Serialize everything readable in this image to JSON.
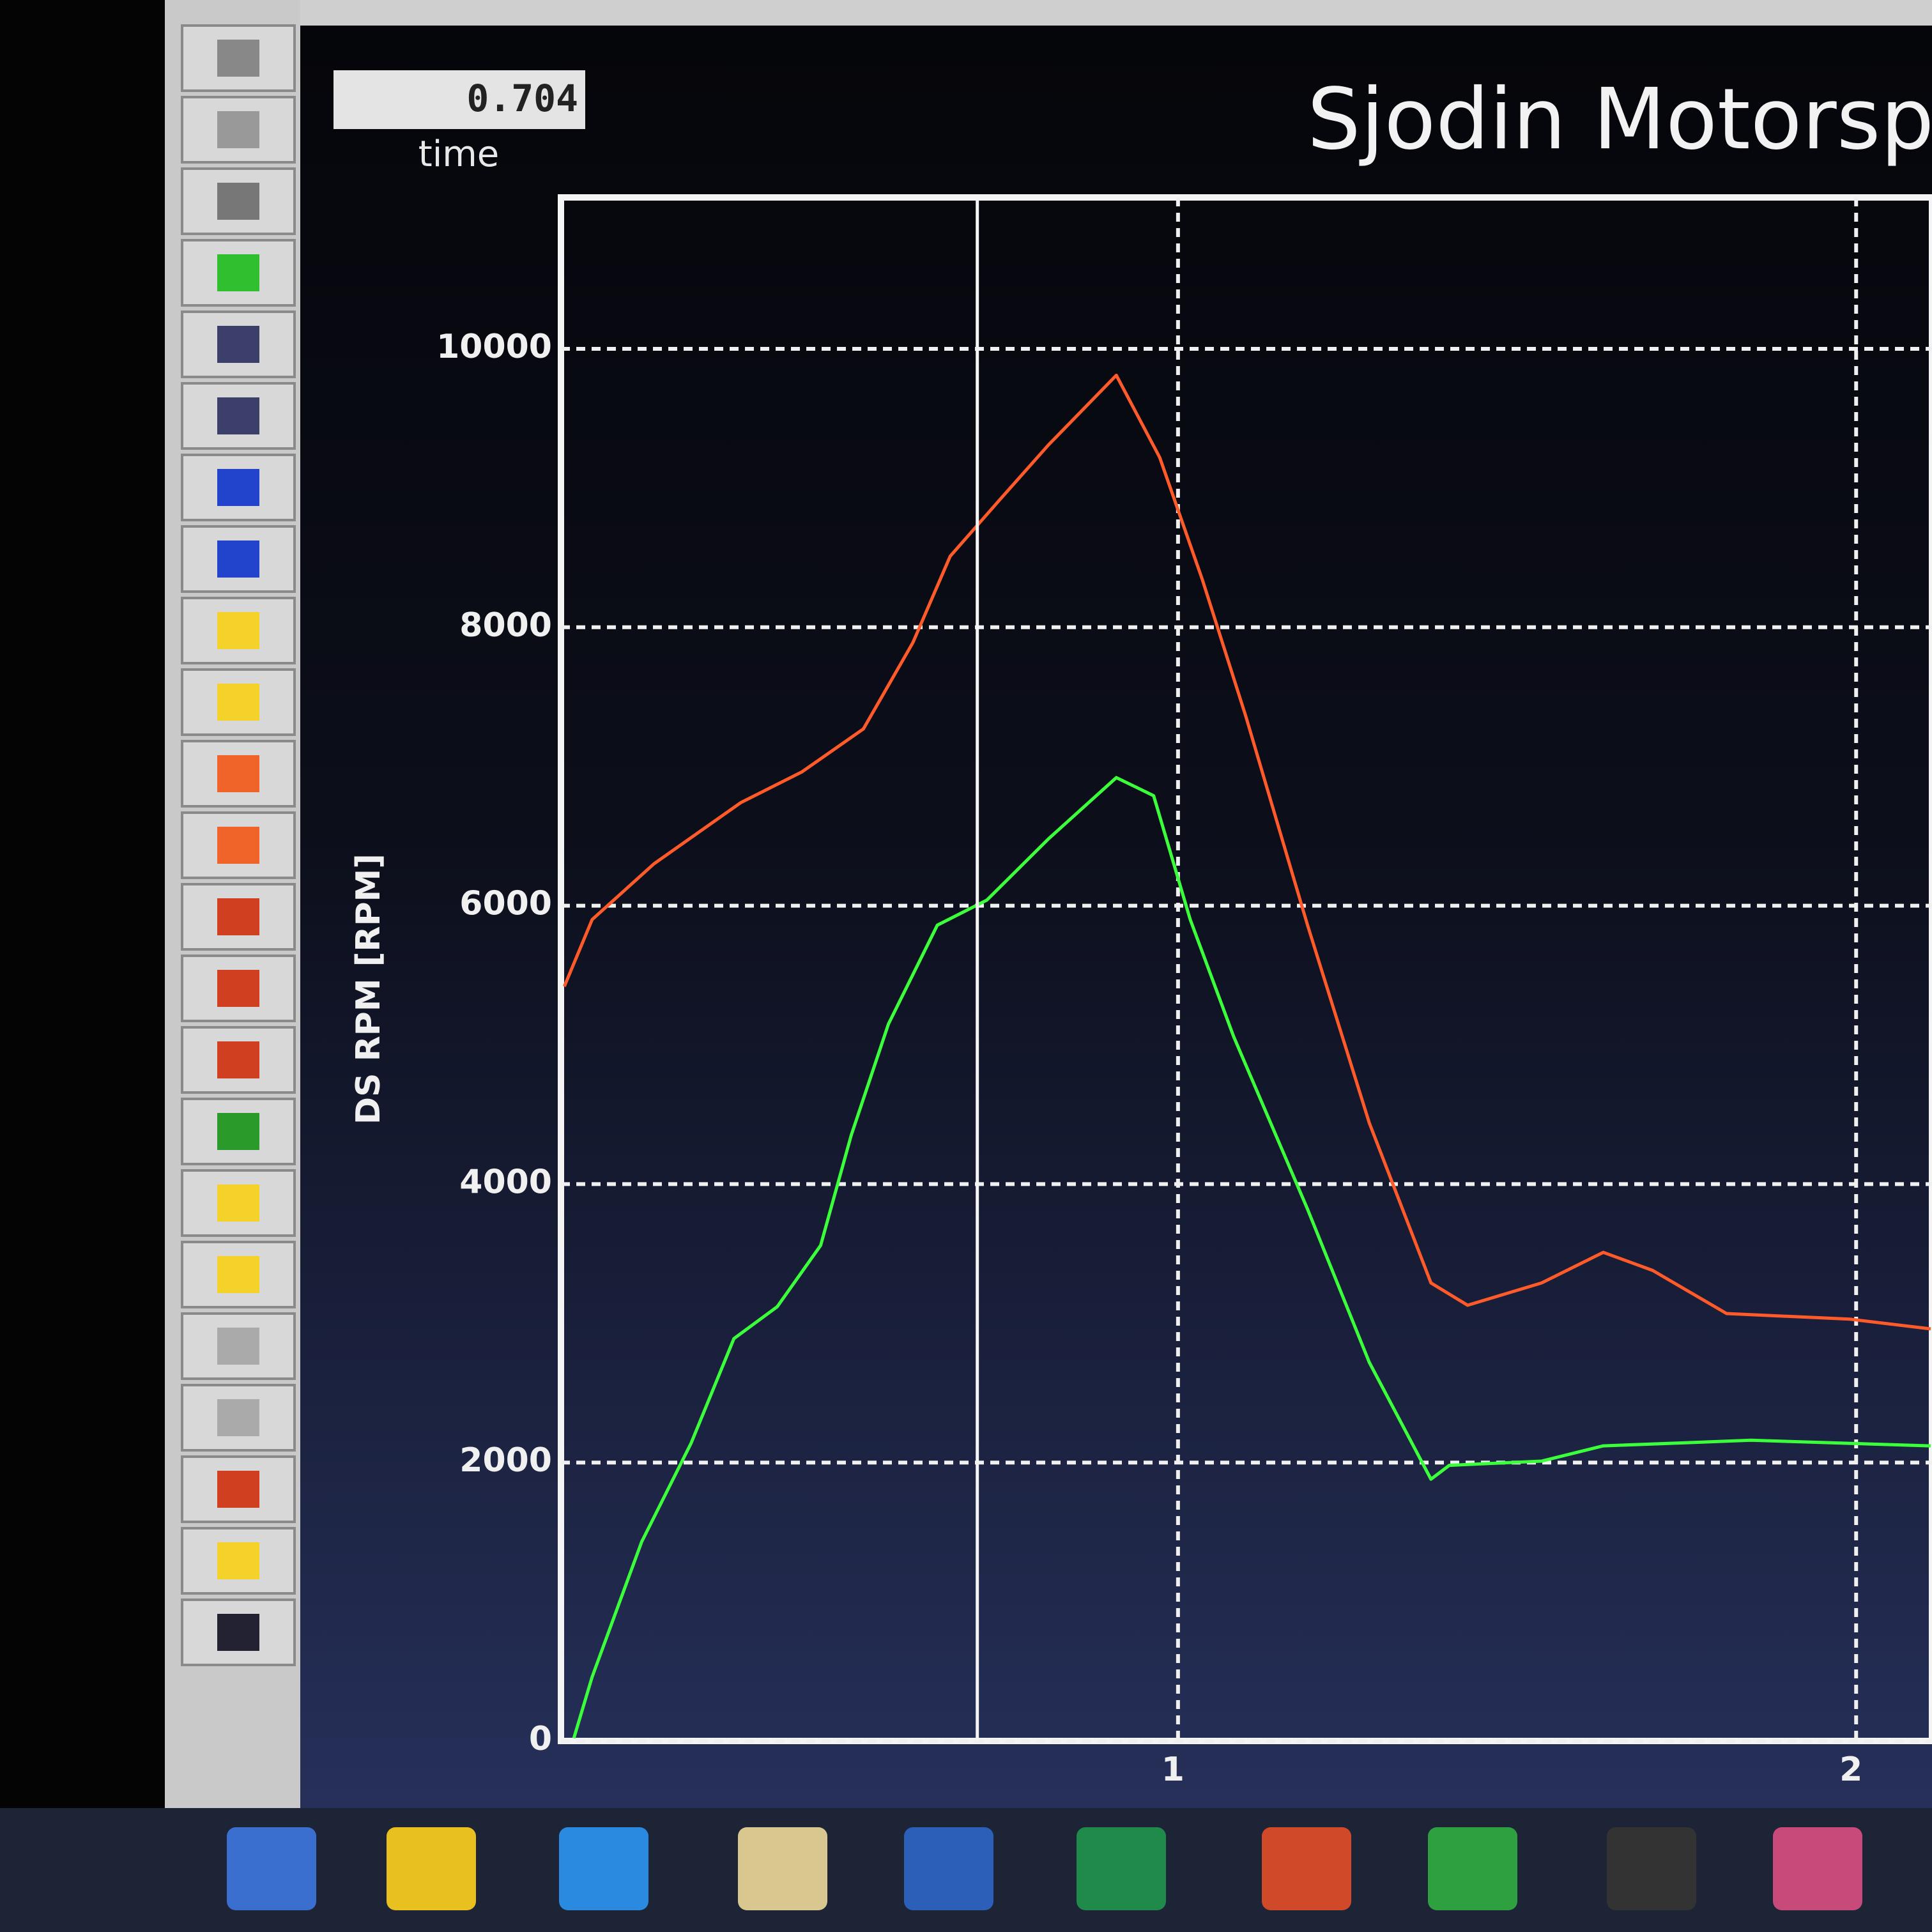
{
  "chart_data": {
    "type": "line",
    "title": "Sjodin Motorspor",
    "y_label": "DS RPM [RPM]",
    "cursor": {
      "value": 0.704,
      "label": "time"
    },
    "xlim": [
      0.09,
      2.11
    ],
    "xticks": [
      1,
      2
    ],
    "ylim": [
      0,
      10000
    ],
    "yticks": [
      0,
      2000,
      4000,
      6000,
      8000,
      10000
    ],
    "grid": true,
    "series": [
      {
        "color": "#ff5a2a",
        "x": [
          0.095,
          0.136,
          0.227,
          0.355,
          0.445,
          0.536,
          0.609,
          0.664,
          0.736,
          0.809,
          0.909,
          0.973,
          1.036,
          1.1,
          1.191,
          1.282,
          1.373,
          1.427,
          1.536,
          1.627,
          1.7,
          1.809,
          1.991,
          2.11
        ],
        "values": [
          5420,
          5900,
          6300,
          6740,
          6960,
          7270,
          7890,
          8510,
          8910,
          9310,
          9810,
          9220,
          8340,
          7360,
          5860,
          4440,
          3290,
          3130,
          3290,
          3510,
          3380,
          3070,
          3030,
          2960
        ]
      },
      {
        "color": "#3cff3c",
        "x": [
          0.109,
          0.136,
          0.209,
          0.282,
          0.345,
          0.409,
          0.473,
          0.518,
          0.573,
          0.645,
          0.718,
          0.809,
          0.909,
          0.964,
          1.018,
          1.082,
          1.191,
          1.282,
          1.373,
          1.4,
          1.536,
          1.627,
          1.845,
          2.11
        ],
        "values": [
          20,
          460,
          1430,
          2140,
          2890,
          3120,
          3560,
          4350,
          5150,
          5860,
          6040,
          6480,
          6920,
          6790,
          5900,
          5060,
          3820,
          2720,
          1880,
          1980,
          2010,
          2120,
          2160,
          2120
        ]
      }
    ]
  }
}
